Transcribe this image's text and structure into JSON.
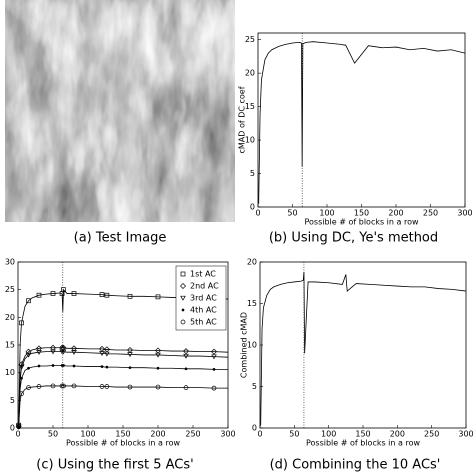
{
  "image": {
    "caption": "(a) Test Image"
  },
  "chart_data": [
    {
      "type": "line",
      "caption": "(b) Using DC, Ye's method",
      "xlabel": "Possible # of blocks in a row",
      "ylabel": "cMAD of DC coef",
      "xlim": [
        0,
        300
      ],
      "xticks": [
        0,
        50,
        100,
        150,
        200,
        250,
        300
      ],
      "ylim": [
        0,
        26
      ],
      "yticks": [
        0,
        5,
        10,
        15,
        20,
        25
      ],
      "vline_x": 64,
      "x": [
        1,
        3,
        5,
        10,
        15,
        20,
        30,
        40,
        50,
        60,
        63,
        64,
        65,
        70,
        80,
        100,
        120,
        125,
        127,
        140,
        160,
        180,
        200,
        220,
        240,
        260,
        280,
        300
      ],
      "series": [
        {
          "color": "#000000",
          "values": [
            0.5,
            14,
            19,
            22,
            23,
            23.5,
            24,
            24.3,
            24.5,
            24.6,
            24.5,
            6,
            24.4,
            24.6,
            24.7,
            24.5,
            24.3,
            24.2,
            24.2,
            21.5,
            24.1,
            23.8,
            23.9,
            23.5,
            23.7,
            23.3,
            23.5,
            23
          ]
        }
      ]
    },
    {
      "type": "line",
      "caption": "(c) Using the first 5 ACs'",
      "xlabel": "Possible # of blocks in a row",
      "legend": "upper right",
      "xlim": [
        0,
        300
      ],
      "xticks": [
        0,
        50,
        100,
        150,
        200,
        250,
        300
      ],
      "ylim": [
        0,
        30
      ],
      "yticks": [
        0,
        5,
        10,
        15,
        20,
        25,
        30
      ],
      "vline_x": 64,
      "x": [
        1,
        3,
        5,
        10,
        15,
        20,
        30,
        40,
        50,
        60,
        63,
        64,
        65,
        70,
        80,
        100,
        120,
        125,
        127,
        140,
        160,
        180,
        200,
        220,
        240,
        260,
        280,
        300
      ],
      "series": [
        {
          "name": "1st AC",
          "color": "#000000",
          "marker": "square",
          "values": [
            0.5,
            15,
            19,
            22,
            23,
            23.5,
            24,
            24.2,
            24.3,
            24.4,
            24.3,
            21,
            25,
            24.3,
            24.3,
            24.2,
            24.1,
            24,
            24,
            23.9,
            23.8,
            23.8,
            23.7,
            23.6,
            23.6,
            23.5,
            23.4,
            23.3
          ]
        },
        {
          "name": "2nd AC",
          "color": "#000000",
          "marker": "diamond",
          "values": [
            0.3,
            9,
            11.5,
            13,
            13.8,
            14.1,
            14.4,
            14.5,
            14.5,
            14.5,
            14.5,
            14.7,
            14.5,
            14.4,
            14.4,
            14.3,
            14.3,
            14.2,
            14.2,
            14.1,
            14.1,
            14,
            14,
            13.9,
            13.9,
            13.8,
            13.8,
            13.7
          ]
        },
        {
          "name": "3rd AC",
          "color": "#000000",
          "marker": "triangle",
          "values": [
            0.3,
            8.5,
            11,
            12.5,
            13.2,
            13.5,
            13.7,
            13.8,
            13.8,
            13.8,
            13.8,
            14,
            13.8,
            13.7,
            13.7,
            13.6,
            13.5,
            13.5,
            13.4,
            13.4,
            13.3,
            13.2,
            13.2,
            13.1,
            13,
            13,
            12.9,
            12.8
          ]
        },
        {
          "name": "4th AC",
          "color": "#000000",
          "marker": "dot",
          "values": [
            0.2,
            7,
            9,
            10.4,
            10.8,
            11,
            11.2,
            11.2,
            11.3,
            11.3,
            11.3,
            11.5,
            11.3,
            11.2,
            11.2,
            11.1,
            11.1,
            11,
            11,
            11,
            10.9,
            10.9,
            10.8,
            10.8,
            10.7,
            10.7,
            10.6,
            10.6
          ]
        },
        {
          "name": "5th AC",
          "color": "#000000",
          "marker": "circle",
          "values": [
            0.2,
            5,
            6.2,
            7,
            7.3,
            7.4,
            7.5,
            7.6,
            7.6,
            7.6,
            7.6,
            7.8,
            7.6,
            7.6,
            7.6,
            7.5,
            7.5,
            7.5,
            7.5,
            7.4,
            7.4,
            7.4,
            7.4,
            7.3,
            7.3,
            7.3,
            7.2,
            7.2
          ]
        }
      ]
    },
    {
      "type": "line",
      "caption": "(d) Combining the 10 ACs'",
      "xlabel": "Possible # of blocks in a row",
      "ylabel": "Combined cMAD",
      "xlim": [
        0,
        300
      ],
      "xticks": [
        0,
        50,
        100,
        150,
        200,
        250,
        300
      ],
      "ylim": [
        0,
        20
      ],
      "yticks": [
        0,
        5,
        10,
        15,
        20
      ],
      "vline_x": 64,
      "x": [
        1,
        3,
        5,
        10,
        15,
        20,
        30,
        40,
        50,
        60,
        63,
        64,
        65,
        70,
        80,
        100,
        120,
        125,
        127,
        140,
        160,
        180,
        200,
        220,
        240,
        260,
        280,
        300
      ],
      "series": [
        {
          "color": "#000000",
          "values": [
            0.3,
            12,
            14.5,
            16,
            16.7,
            17,
            17.3,
            17.5,
            17.6,
            17.7,
            17.8,
            18.8,
            9,
            17.6,
            17.6,
            17.5,
            17.3,
            18.5,
            16.5,
            17.4,
            17.3,
            17.2,
            17.1,
            17,
            17,
            16.8,
            16.7,
            16.5
          ]
        }
      ]
    }
  ]
}
